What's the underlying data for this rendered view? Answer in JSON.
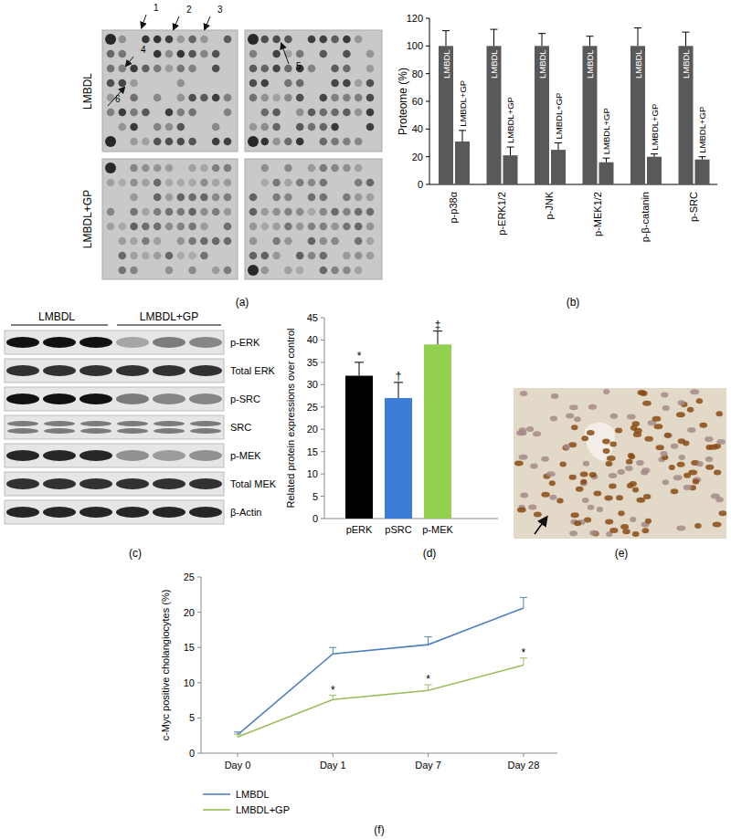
{
  "panel_labels": [
    "(a)",
    "(b)",
    "(c)",
    "(d)",
    "(e)",
    "(f)"
  ],
  "blot_arrays": {
    "rows": [
      "LMBDL",
      "LMBDL+GP"
    ],
    "arrows": [
      "1",
      "2",
      "3",
      "4",
      "5",
      "6"
    ]
  },
  "western_blot": {
    "groups": [
      "LMBDL",
      "LMBDL+GP"
    ],
    "rows": [
      "p-ERK",
      "Total ERK",
      "p-SRC",
      "SRC",
      "p-MEK",
      "Total MEK",
      "β-Actin"
    ]
  },
  "chart_data": [
    {
      "type": "bar",
      "y_label": "Proteome (%)",
      "categories": [
        "p-p38α",
        "p-ERK1/2",
        "p-JNK",
        "p-MEK1/2",
        "p-β-catanin",
        "p-SRC"
      ],
      "series": [
        {
          "name": "LMBDL",
          "color": "#595959",
          "values": [
            100,
            100,
            100,
            100,
            100,
            100
          ],
          "errors": [
            11,
            12,
            9,
            7,
            13,
            10
          ]
        },
        {
          "name": "LMBDL+GP",
          "color": "#595959",
          "values": [
            31,
            21,
            25,
            16,
            20,
            18
          ],
          "errors": [
            8,
            6,
            5,
            3,
            2,
            2
          ]
        }
      ],
      "ylim": [
        0,
        120
      ],
      "yticks": [
        0,
        20,
        40,
        60,
        80,
        100,
        120
      ]
    },
    {
      "type": "bar",
      "y_label": "Related protein expressions over control",
      "categories": [
        "pERK",
        "pSRC",
        "p-MEK"
      ],
      "values": [
        32,
        27,
        39
      ],
      "errors": [
        3,
        3.5,
        3
      ],
      "colors": [
        "#000000",
        "#3b7dd8",
        "#92d050"
      ],
      "annotations": [
        "*",
        "†",
        "‡"
      ],
      "ylim": [
        0,
        45
      ],
      "yticks": [
        0,
        5,
        10,
        15,
        20,
        25,
        30,
        35,
        40,
        45
      ]
    },
    {
      "type": "line",
      "y_label": "c-Myc positive cholangiocytes (%)",
      "categories": [
        "Day 0",
        "Day 1",
        "Day 7",
        "Day 28"
      ],
      "series": [
        {
          "name": "LMBDL",
          "color": "#4f81bd",
          "values": [
            2.6,
            14.1,
            15.4,
            20.6
          ],
          "errors": [
            0.4,
            0.9,
            1.1,
            1.5
          ]
        },
        {
          "name": "LMBDL+GP",
          "color": "#9bbb59",
          "values": [
            2.3,
            7.6,
            8.9,
            12.5
          ],
          "errors": [
            0.4,
            0.6,
            0.8,
            1.0
          ],
          "annotations": [
            null,
            "*",
            "*",
            "*"
          ]
        }
      ],
      "ylim": [
        0,
        25
      ],
      "yticks": [
        0,
        5,
        10,
        15,
        20,
        25
      ],
      "legend": "bottom"
    }
  ]
}
